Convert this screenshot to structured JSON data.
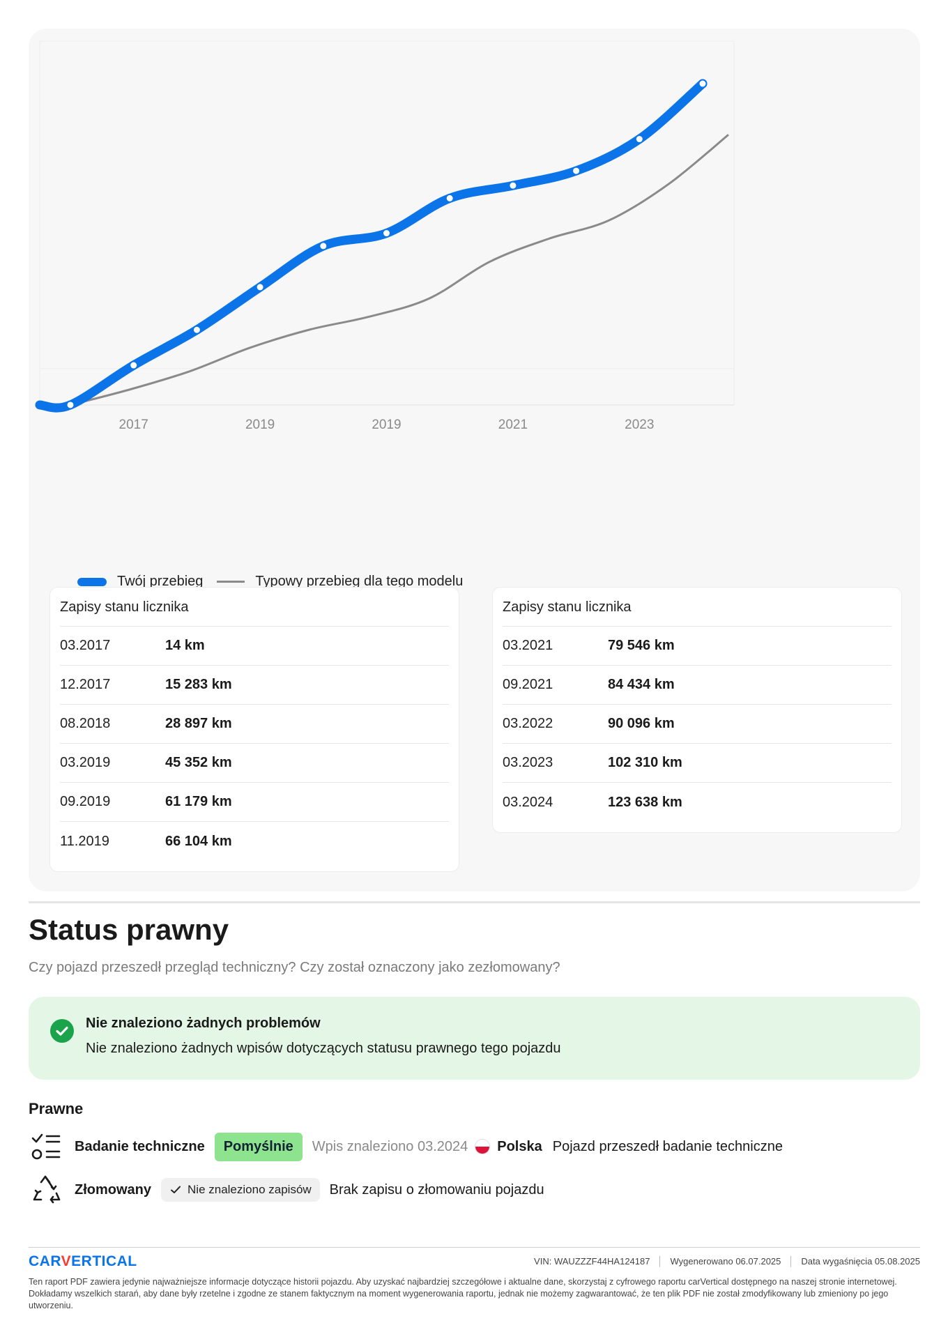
{
  "chart_data": {
    "type": "line",
    "x_tick_labels": [
      "2017",
      "2019",
      "2019",
      "2021",
      "2023"
    ],
    "series": [
      {
        "name": "Twój przebieg",
        "color": "#0a74e8",
        "points": [
          {
            "date": "03.2017",
            "km": 14
          },
          {
            "date": "12.2017",
            "km": 15283
          },
          {
            "date": "08.2018",
            "km": 28897
          },
          {
            "date": "03.2019",
            "km": 45352
          },
          {
            "date": "09.2019",
            "km": 61179
          },
          {
            "date": "11.2019",
            "km": 66104
          },
          {
            "date": "03.2021",
            "km": 79546
          },
          {
            "date": "09.2021",
            "km": 84434
          },
          {
            "date": "03.2022",
            "km": 90096
          },
          {
            "date": "03.2023",
            "km": 102310
          },
          {
            "date": "03.2024",
            "km": 123638
          }
        ]
      },
      {
        "name": "Typowy przebieg dla tego modelu",
        "color": "#8a8a8a",
        "values_km_estimated": [
          14,
          6000,
          13000,
          22000,
          29000,
          34000,
          41000,
          55000,
          64000,
          71000,
          85000,
          104000
        ]
      }
    ],
    "y_unit": "km",
    "grid": true
  },
  "legend": {
    "main_label": "Twój przebieg",
    "typical_label": "Typowy przebieg dla tego modelu"
  },
  "records_left": {
    "title": "Zapisy stanu licznika",
    "rows": [
      {
        "date": "03.2017",
        "km": "14 km"
      },
      {
        "date": "12.2017",
        "km": "15 283 km"
      },
      {
        "date": "08.2018",
        "km": "28 897 km"
      },
      {
        "date": "03.2019",
        "km": "45 352 km"
      },
      {
        "date": "09.2019",
        "km": "61 179 km"
      },
      {
        "date": "11.2019",
        "km": "66 104 km"
      }
    ]
  },
  "records_right": {
    "title": "Zapisy stanu licznika",
    "rows": [
      {
        "date": "03.2021",
        "km": "79 546 km"
      },
      {
        "date": "09.2021",
        "km": "84 434 km"
      },
      {
        "date": "03.2022",
        "km": "90 096 km"
      },
      {
        "date": "03.2023",
        "km": "102 310 km"
      },
      {
        "date": "03.2024",
        "km": "123 638 km"
      }
    ]
  },
  "status": {
    "title": "Status prawny",
    "subtitle": "Czy pojazd przeszedł przegląd techniczny? Czy został oznaczony jako zezłomowany?",
    "ok_title": "Nie znaleziono żadnych problemów",
    "ok_text": "Nie znaleziono żadnych wpisów dotyczących statusu prawnego tego pojazdu",
    "ok_color": "#1aa34a"
  },
  "legal": {
    "heading": "Prawne",
    "inspection": {
      "icon": "checklist-icon",
      "label": "Badanie techniczne",
      "badge": "Pomyślnie",
      "found": "Wpis znaleziono 03.2024",
      "country": "Polska",
      "description": "Pojazd przeszedł badanie techniczne"
    },
    "scrapped": {
      "icon": "recycle-icon",
      "label": "Złomowany",
      "badge": "Nie znaleziono zapisów",
      "description": "Brak zapisu o złomowaniu pojazdu"
    }
  },
  "footer": {
    "brand_a": "CAR",
    "brand_v": "V",
    "brand_b": "ERTICAL",
    "vin_label": "VIN:",
    "vin": "WAUZZZF44HA124187",
    "generated_label": "Wygenerowano",
    "generated": "06.07.2025",
    "expiry_label": "Data wygaśnięcia",
    "expiry": "05.08.2025",
    "note": "Ten raport PDF zawiera jedynie najważniejsze informacje dotyczące historii pojazdu. Aby uzyskać najbardziej szczegółowe i aktualne dane, skorzystaj z cyfrowego raportu carVertical dostępnego na naszej stronie internetowej. Dokładamy wszelkich starań, aby dane były rzetelne i zgodne ze stanem faktycznym na moment wygenerowania raportu, jednak nie możemy zagwarantować, że ten plik PDF nie został zmodyfikowany lub zmieniony po jego utworzeniu."
  }
}
